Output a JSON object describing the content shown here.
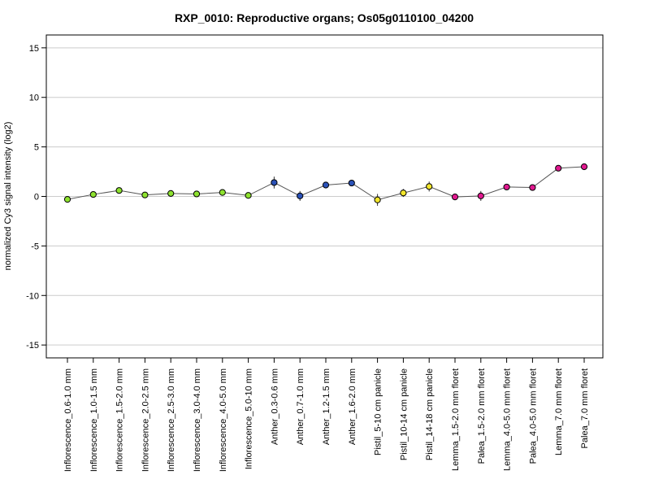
{
  "chart_data": {
    "type": "line",
    "title": "RXP_0010: Reproductive organs; Os05g0110100_04200",
    "xlabel": "",
    "ylabel": "normalized Cy3 signal intensity (log2)",
    "ylim": [
      -16.3,
      16.3
    ],
    "yticks": [
      15,
      10,
      5,
      0,
      -5,
      -10,
      -15
    ],
    "grid": "horizontal",
    "legend": "none",
    "categories": [
      "Inflorescence_0.6-1.0 mm",
      "Inflorescence_1.0-1.5 mm",
      "Inflorescence_1.5-2.0 mm",
      "Inflorescence_2.0-2.5 mm",
      "Inflorescence_2.5-3.0 mm",
      "Inflorescence_3.0-4.0 mm",
      "Inflorescence_4.0-5.0 mm",
      "Inflorescence_5.0-10 mm",
      "Anther_0.3-0.6 mm",
      "Anther_0.7-1.0 mm",
      "Anther_1.2-1.5 mm",
      "Anther_1.6-2.0 mm",
      "Pistil_5-10 cm panicle",
      "Pistil_10-14 cm panicle",
      "Pistil_14-18 cm panicle",
      "Lemma_1.5-2.0 mm floret",
      "Palea_1.5-2.0 mm floret",
      "Lemma_4.0-5.0 mm floret",
      "Palea_4.0-5.0 mm floret",
      "Lemma_7.0 mm floret",
      "Palea_7.0 mm floret"
    ],
    "values": [
      -0.3,
      0.2,
      0.6,
      0.15,
      0.3,
      0.25,
      0.4,
      0.1,
      1.4,
      0.05,
      1.15,
      1.35,
      -0.35,
      0.35,
      1.0,
      -0.05,
      0.05,
      0.95,
      0.9,
      2.85,
      3.0
    ],
    "errors": [
      0.15,
      0.1,
      0.2,
      0.1,
      0.15,
      0.15,
      0.15,
      0.1,
      0.6,
      0.5,
      0.15,
      0.3,
      0.6,
      0.4,
      0.5,
      0.3,
      0.5,
      0.15,
      0.15,
      0.15,
      0.15
    ],
    "point_colors": [
      "#8ee22f",
      "#8ee22f",
      "#8ee22f",
      "#8ee22f",
      "#8ee22f",
      "#8ee22f",
      "#8ee22f",
      "#8ee22f",
      "#2b52b8",
      "#2b52b8",
      "#2b52b8",
      "#2b52b8",
      "#f2e62c",
      "#f2e62c",
      "#f2e62c",
      "#e0198f",
      "#e0198f",
      "#e0198f",
      "#e0198f",
      "#e0198f",
      "#e0198f"
    ],
    "line_color": "#555555",
    "grid_color": "#cccccc"
  }
}
